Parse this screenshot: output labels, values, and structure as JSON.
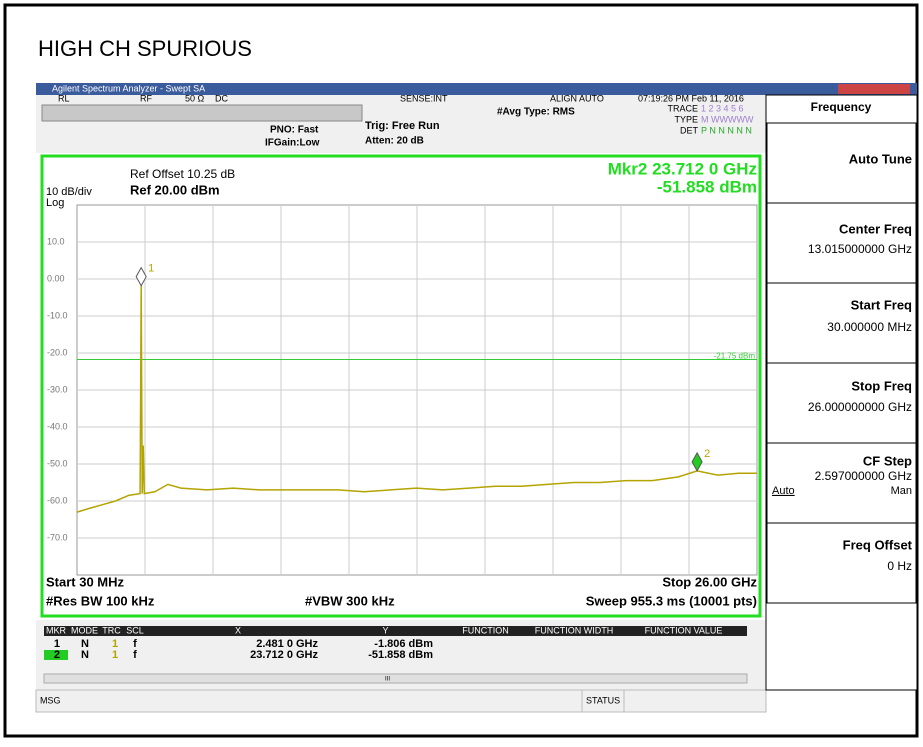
{
  "header": {
    "title": "HIGH CH SPURIOUS",
    "window_title": "Agilent Spectrum Analyzer - Swept SA"
  },
  "status_bar": {
    "rl": "RL",
    "rf": "RF",
    "impedance": "50 Ω",
    "coupling": "DC",
    "sense": "SENSE:INT",
    "align": "ALIGN AUTO",
    "datetime": "07:19:26 PM Feb 11, 2016",
    "avg_type": "#Avg Type: RMS",
    "pno": "PNO: Fast",
    "ifgain": "IFGain:Low",
    "trig": "Trig: Free Run",
    "atten": "Atten: 20 dB",
    "trace_label": "TRACE",
    "trace_values": "1 2 3 4 5 6",
    "type_label": "TYPE",
    "type_values": "M WWWWW",
    "det_label": "DET",
    "det_values": "P N N N N N"
  },
  "display": {
    "ref_offset": "Ref Offset 10.25 dB",
    "scale": "10 dB/div",
    "ref_level": "Ref 20.00 dBm",
    "scale_type": "Log",
    "marker_readout_x": "Mkr2 23.712 0 GHz",
    "marker_readout_y": "-51.858 dBm",
    "start": "Start 30 MHz",
    "stop": "Stop 26.00 GHz",
    "rbw": "#Res BW 100 kHz",
    "vbw": "#VBW 300 kHz",
    "sweep": "Sweep  955.3 ms (10001 pts)",
    "xlim": [
      0.03,
      26
    ],
    "ylim": [
      -80,
      20
    ],
    "yticks": [
      {
        "value": 10,
        "label": "10.0"
      },
      {
        "value": 0,
        "label": "0.00"
      },
      {
        "value": -10,
        "label": "-10.0"
      },
      {
        "value": -20,
        "label": "-20.0"
      },
      {
        "value": -30,
        "label": "-30.0"
      },
      {
        "value": -40,
        "label": "-40.0"
      },
      {
        "value": -50,
        "label": "-50.0"
      },
      {
        "value": -60,
        "label": "-60.0"
      },
      {
        "value": -70,
        "label": "-70.0"
      }
    ],
    "threshold": {
      "value": -21.75,
      "label": "-21.75 dBm",
      "color": "#33cc33"
    },
    "trace": {
      "color": "#b3a400",
      "x": [
        0.03,
        0.5,
        1.0,
        1.5,
        2.0,
        2.44,
        2.481,
        2.52,
        2.56,
        2.6,
        3.0,
        3.5,
        4.0,
        5.0,
        6.0,
        7.0,
        8.0,
        9.0,
        10.0,
        11.0,
        12.0,
        13.0,
        14.0,
        15.0,
        16.0,
        17.0,
        18.0,
        19.0,
        20.0,
        21.0,
        22.0,
        23.0,
        23.712,
        24.5,
        25.3,
        26.0
      ],
      "y": [
        -63,
        -62,
        -61,
        -60,
        -58.5,
        -58,
        -1.806,
        -58,
        -45,
        -58,
        -57.5,
        -55.5,
        -56.5,
        -57,
        -56.5,
        -57,
        -57,
        -57,
        -57,
        -57.5,
        -57,
        -56.5,
        -57,
        -56.5,
        -56,
        -56,
        -55.5,
        -55,
        -55,
        -54.5,
        -54.5,
        -53.5,
        -51.858,
        -53,
        -52.5,
        -52.5
      ]
    },
    "markers": [
      {
        "number": "1",
        "x_ghz": 2.481,
        "y_dbm": -1.806,
        "mode": "N",
        "trc": "1",
        "scl": "f",
        "x_label": "2.481 0 GHz",
        "y_label": "-1.806 dBm",
        "color": "#ffffff"
      },
      {
        "number": "2",
        "x_ghz": 23.712,
        "y_dbm": -51.858,
        "mode": "N",
        "trc": "1",
        "scl": "f",
        "x_label": "23.712 0 GHz",
        "y_label": "-51.858 dBm",
        "color": "#22cc22"
      }
    ]
  },
  "marker_table": {
    "headers": [
      "MKR",
      "MODE",
      "TRC",
      "SCL",
      "X",
      "Y",
      "FUNCTION",
      "FUNCTION WIDTH",
      "FUNCTION VALUE"
    ],
    "scroll": "III"
  },
  "softkeys": {
    "menu": "Frequency",
    "auto_tune": "Auto Tune",
    "center_freq": "Center Freq",
    "center_value": "13.015000000 GHz",
    "start_freq": "Start Freq",
    "start_value": "30.000000 MHz",
    "stop_freq": "Stop Freq",
    "stop_value": "26.000000000 GHz",
    "cf_step": "CF Step",
    "cf_value": "2.597000000 GHz",
    "auto": "Auto",
    "man": "Man",
    "freq_offset": "Freq Offset",
    "offset_value": "0 Hz"
  },
  "message_bar": {
    "msg": "MSG",
    "status": "STATUS"
  }
}
